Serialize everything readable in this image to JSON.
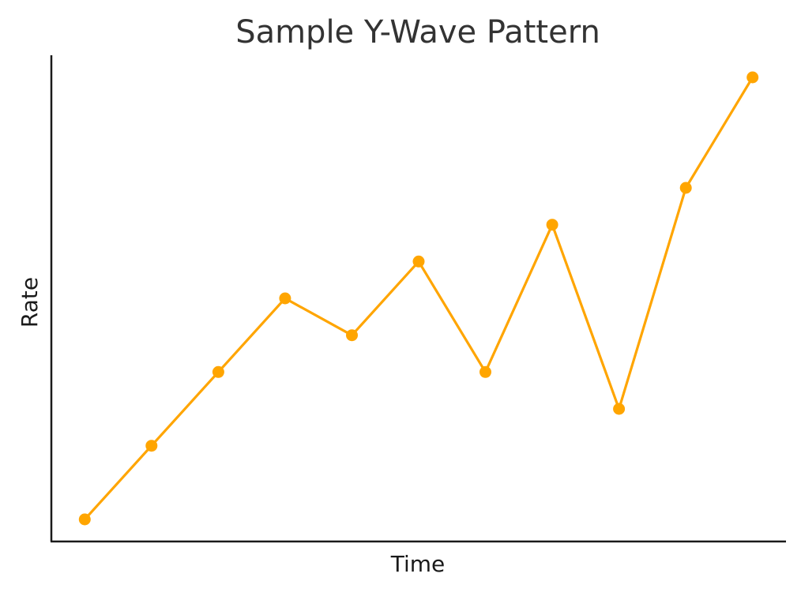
{
  "chart_data": {
    "type": "line",
    "title": "Sample Y-Wave Pattern",
    "xlabel": "Time",
    "ylabel": "Rate",
    "x": [
      1,
      2,
      3,
      4,
      5,
      6,
      7,
      8,
      9,
      10,
      11
    ],
    "series": [
      {
        "values": [
          1,
          3,
          5,
          7,
          6,
          8,
          5,
          9,
          4,
          10,
          13
        ]
      }
    ],
    "xlim": [
      0.5,
      11.5
    ],
    "ylim": [
      0.4,
      13.6
    ],
    "xticks": [],
    "yticks": [],
    "grid": false,
    "legend": "none",
    "colors": {
      "line": "#FFA500",
      "marker": "#FFA500",
      "axis": "#1a1a1a",
      "title": "#333333"
    },
    "marker": "circle"
  }
}
